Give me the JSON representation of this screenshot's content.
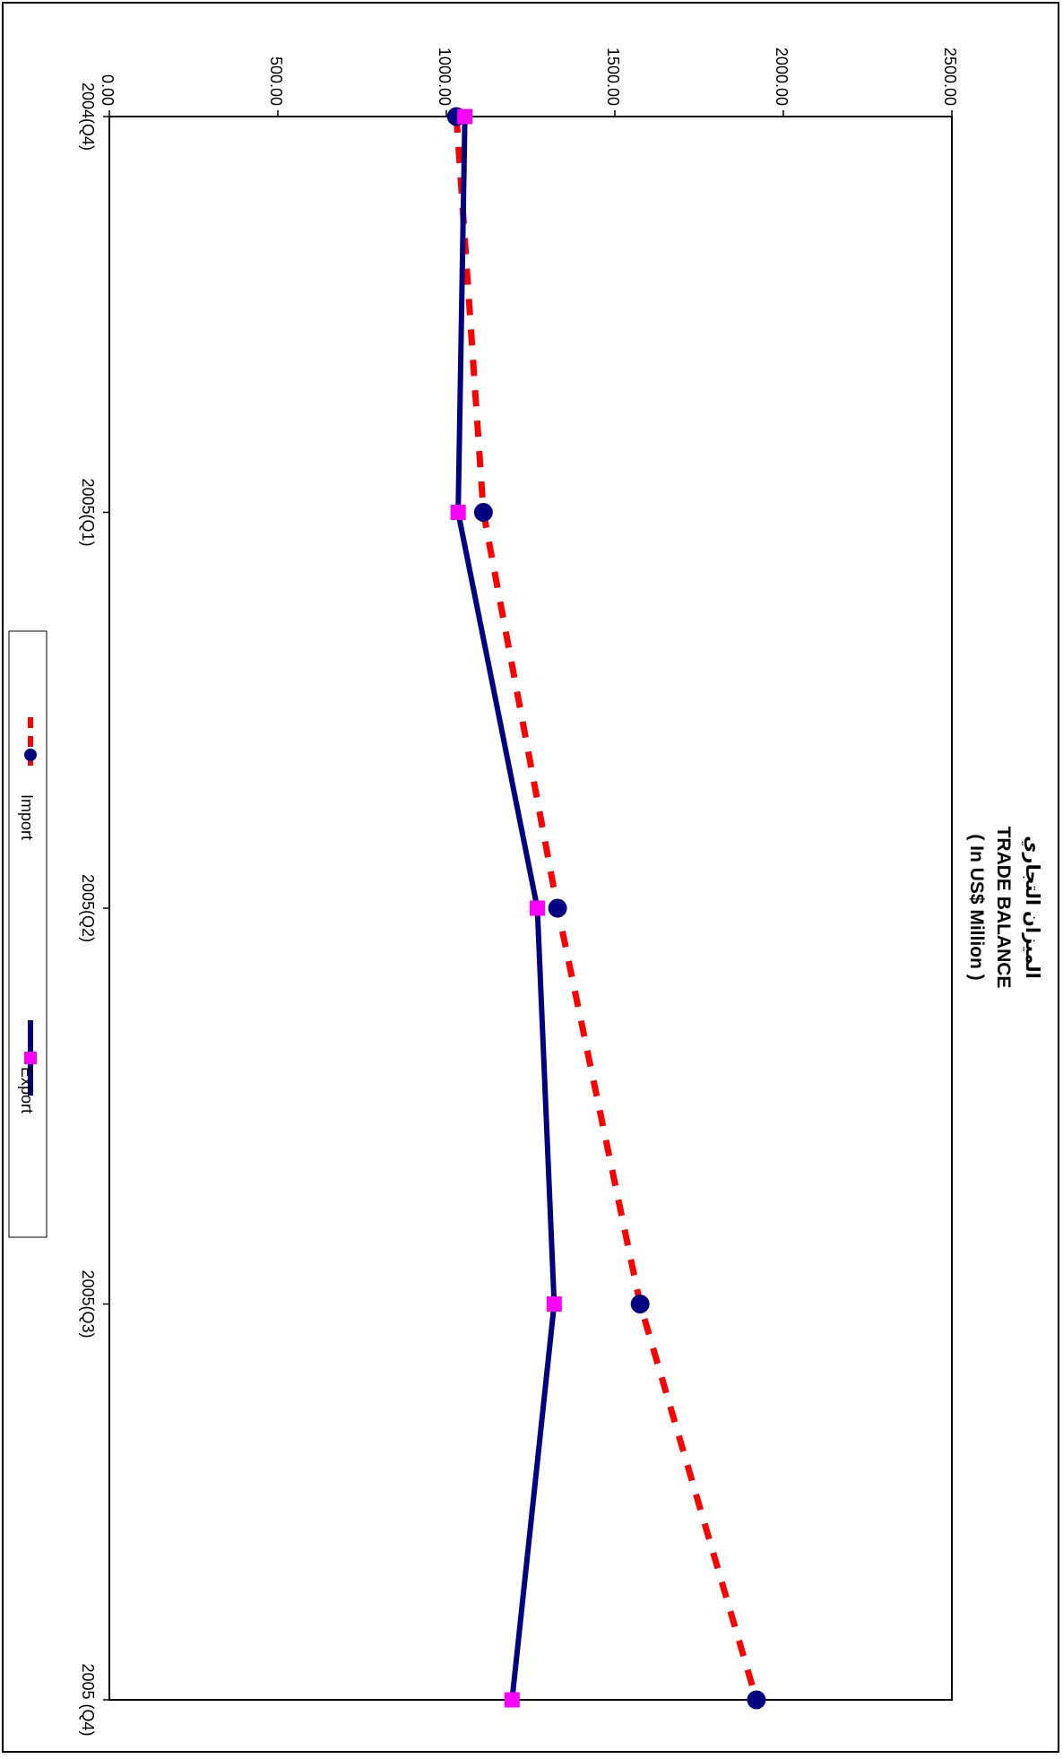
{
  "chart_data": {
    "type": "line",
    "title": "الميزان التجاري",
    "subtitle": "TRADE BALANCE",
    "unit_label": "( In US$ Million )",
    "categories": [
      "2004(Q4)",
      "2005(Q1)",
      "2005(Q2)",
      "2005(Q3)",
      "2005 (Q4)"
    ],
    "ylim": [
      0,
      2500
    ],
    "yticks": [
      "0.00",
      "500.00",
      "1000.00",
      "1500.00",
      "2000.00",
      "2500.00"
    ],
    "grid": false,
    "legend_position": "bottom",
    "orientation": "rotated 90 degrees clockwise",
    "series": [
      {
        "name": "Import",
        "values": [
          1030,
          1110,
          1330,
          1575,
          1920
        ],
        "color": "#000080",
        "marker": "circle",
        "line_color": "#ff0000",
        "line_style": "dashed"
      },
      {
        "name": "Export",
        "values": [
          1055,
          1035,
          1270,
          1320,
          1195
        ],
        "color": "#000080",
        "marker": "square",
        "marker_color": "#ff00ff",
        "line_style": "solid"
      }
    ]
  }
}
